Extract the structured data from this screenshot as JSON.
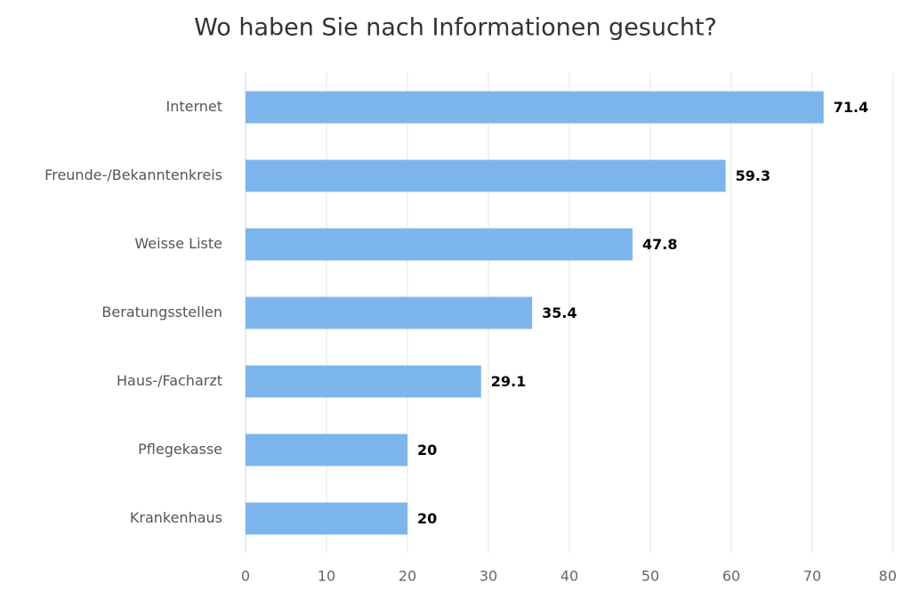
{
  "chart_data": {
    "type": "bar",
    "orientation": "horizontal",
    "title": "Wo haben Sie nach Informationen gesucht?",
    "categories": [
      "Internet",
      "Freunde-/Bekanntenkreis",
      "Weisse Liste",
      "Beratungsstellen",
      "Haus-/Facharzt",
      "Pflegekasse",
      "Krankenhaus"
    ],
    "values": [
      71.4,
      59.3,
      47.8,
      35.4,
      29.1,
      20,
      20
    ],
    "color": "#7cb5ec",
    "xlim": [
      0,
      80
    ],
    "xticks": [
      0,
      10,
      20,
      30,
      40,
      50,
      60,
      70,
      80
    ],
    "grid": true
  }
}
